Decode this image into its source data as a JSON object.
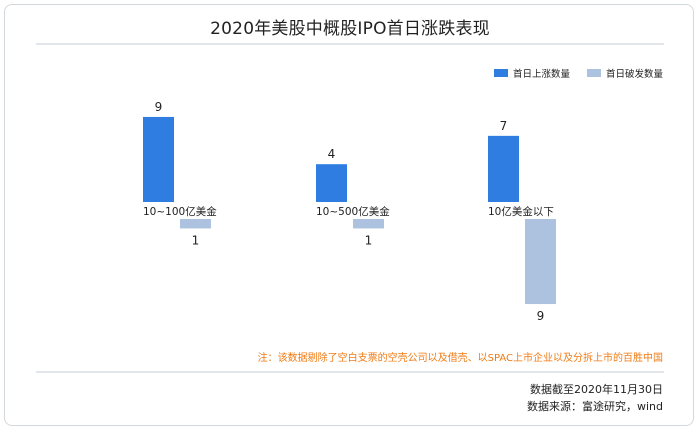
{
  "chart_data": {
    "type": "bar",
    "title": "2020年美股中概股IPO首日涨跌表现",
    "categories": [
      "10~100亿美金",
      "10~500亿美金",
      "10亿美金以下"
    ],
    "series": [
      {
        "name": "首日上涨数量",
        "values": [
          9,
          4,
          7
        ],
        "color": "#2f7de1",
        "direction": "up"
      },
      {
        "name": "首日破发数量",
        "values": [
          1,
          1,
          9
        ],
        "color": "#adc2df",
        "direction": "down"
      }
    ],
    "legend_position": "top-right",
    "grid": false
  },
  "note": "注：该数据剔除了空白支票的空壳公司以及借壳、以SPAC上市企业以及分拆上市的百胜中国",
  "footer": {
    "date_line": "数据截至2020年11月30日",
    "source_line": "数据来源：富途研究，wind"
  }
}
